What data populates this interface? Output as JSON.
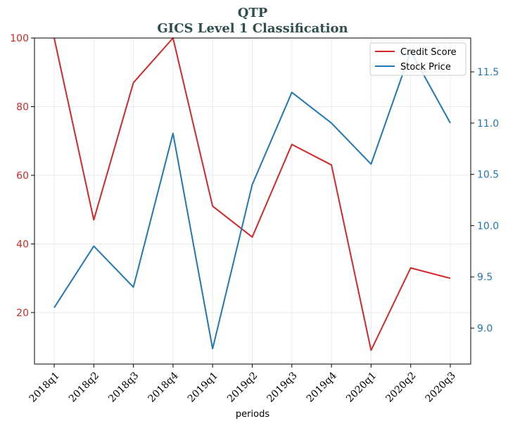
{
  "chart_data": {
    "type": "line",
    "title": "QTP",
    "subtitle": "GICS Level 1 Classification",
    "xlabel": "periods",
    "categories": [
      "2018q1",
      "2018q2",
      "2018q3",
      "2018q4",
      "2019q1",
      "2019q2",
      "2019q3",
      "2019q4",
      "2020q1",
      "2020q2",
      "2020q3"
    ],
    "series": [
      {
        "name": "Credit Score",
        "axis": "left",
        "color": "#d62728",
        "values": [
          100,
          47,
          87,
          100,
          51,
          42,
          69,
          63,
          9,
          33,
          30
        ]
      },
      {
        "name": "Stock Price",
        "axis": "right",
        "color": "#1f77b4",
        "values": [
          9.2,
          9.8,
          9.4,
          10.9,
          8.8,
          10.4,
          11.3,
          11.0,
          10.6,
          11.7,
          11.0
        ]
      }
    ],
    "left_axis": {
      "ylim": [
        5,
        100
      ],
      "ticks": [
        20,
        40,
        60,
        80,
        100
      ]
    },
    "right_axis": {
      "ylim": [
        8.65,
        11.83
      ],
      "ticks": [
        "9.0",
        "9.5",
        "10.0",
        "10.5",
        "11.0",
        "11.5"
      ]
    },
    "grid": true,
    "legend_position": "top-right"
  }
}
